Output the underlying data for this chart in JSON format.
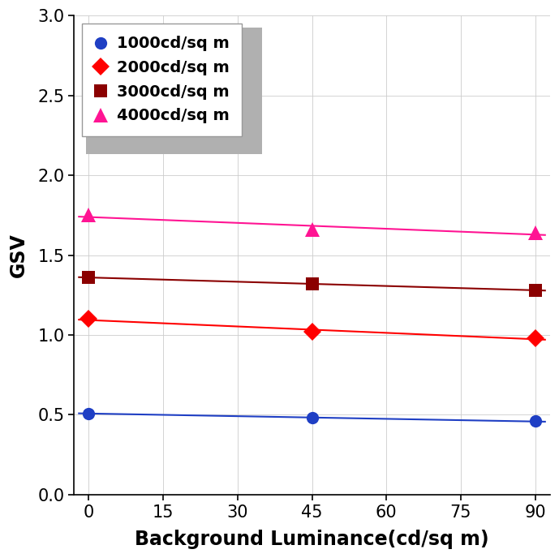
{
  "x_values": [
    0,
    45,
    90
  ],
  "series": [
    {
      "label": "1000cd/sq m",
      "color": "#1F3FC4",
      "marker": "o",
      "markersize": 11,
      "values": [
        0.51,
        0.48,
        0.46
      ]
    },
    {
      "label": "2000cd/sq m",
      "color": "#FF0000",
      "marker": "D",
      "markersize": 11,
      "values": [
        1.1,
        1.02,
        0.98
      ]
    },
    {
      "label": "3000cd/sq m",
      "color": "#8B0000",
      "marker": "s",
      "markersize": 11,
      "values": [
        1.36,
        1.32,
        1.28
      ]
    },
    {
      "label": "4000cd/sq m",
      "color": "#FF1493",
      "marker": "^",
      "markersize": 13,
      "values": [
        1.75,
        1.66,
        1.64
      ]
    }
  ],
  "xlabel": "Background Luminance(cd/sq m)",
  "ylabel": "GSV",
  "xlim": [
    0,
    90
  ],
  "ylim": [
    0.0,
    3.0
  ],
  "xticks": [
    0,
    15,
    30,
    45,
    60,
    75,
    90
  ],
  "yticks": [
    0.0,
    0.5,
    1.0,
    1.5,
    2.0,
    2.5,
    3.0
  ],
  "grid": true,
  "figsize": [
    6.89,
    6.88
  ],
  "dpi": 100,
  "xlabel_fontsize": 17,
  "ylabel_fontsize": 17,
  "tick_fontsize": 15,
  "legend_fontsize": 14,
  "background_color": "#ffffff",
  "line_width": 1.5
}
